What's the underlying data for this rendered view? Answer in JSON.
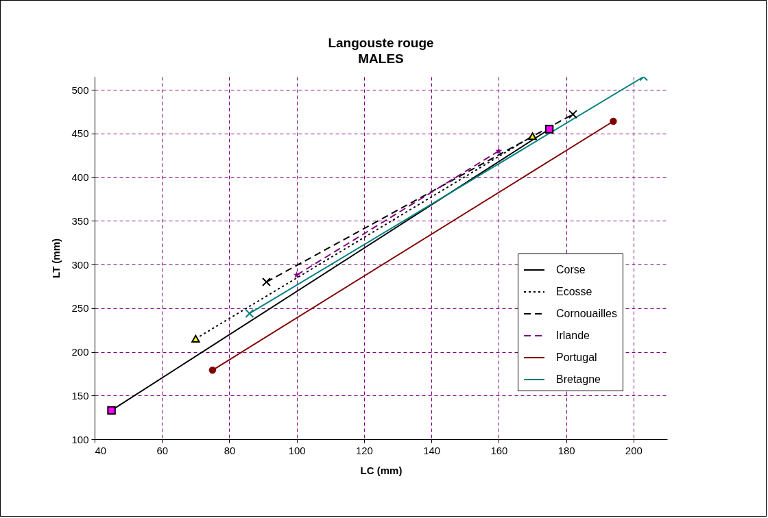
{
  "chart_data": {
    "type": "line",
    "title": "Langouste rouge",
    "subtitle": "MALES",
    "xlabel": "LC (mm)",
    "ylabel": "LT (mm)",
    "xlim": [
      40,
      210
    ],
    "xticks": [
      40,
      60,
      80,
      100,
      120,
      140,
      160,
      180,
      200
    ],
    "ylim": [
      100,
      515
    ],
    "yticks": [
      100,
      150,
      200,
      250,
      300,
      350,
      400,
      450,
      500
    ],
    "grid": true,
    "legend": "bottom right",
    "series": [
      {
        "name": "Corse",
        "color": "#000000",
        "colors": [
          "#ff00ff",
          "#ff00ff"
        ],
        "x": [
          45,
          175
        ],
        "values": [
          133,
          455
        ],
        "marker": "square",
        "line_style": "solid"
      },
      {
        "name": "Ecosse",
        "color": "#000000",
        "colors": [
          "#ffff00",
          "#ffff00"
        ],
        "x": [
          70,
          170
        ],
        "values": [
          215,
          447
        ],
        "marker": "triangle",
        "line_style": "dotted"
      },
      {
        "name": "Cornouailles",
        "color": "#000000",
        "x": [
          91,
          182
        ],
        "values": [
          280,
          472
        ],
        "marker": "cross",
        "line_style": "dashed"
      },
      {
        "name": "Irlande",
        "color": "#800080",
        "x": [
          100,
          160
        ],
        "values": [
          288,
          430
        ],
        "marker": "star",
        "line_style": "dashed"
      },
      {
        "name": "Portugal",
        "color": "#800000",
        "x": [
          75,
          194
        ],
        "values": [
          179,
          464
        ],
        "marker": "circle",
        "line_style": "solid"
      },
      {
        "name": "Bretagne",
        "color": "#008080",
        "x": [
          86,
          203
        ],
        "values": [
          244,
          515
        ],
        "marker": "cross",
        "line_style": "solid"
      }
    ]
  }
}
